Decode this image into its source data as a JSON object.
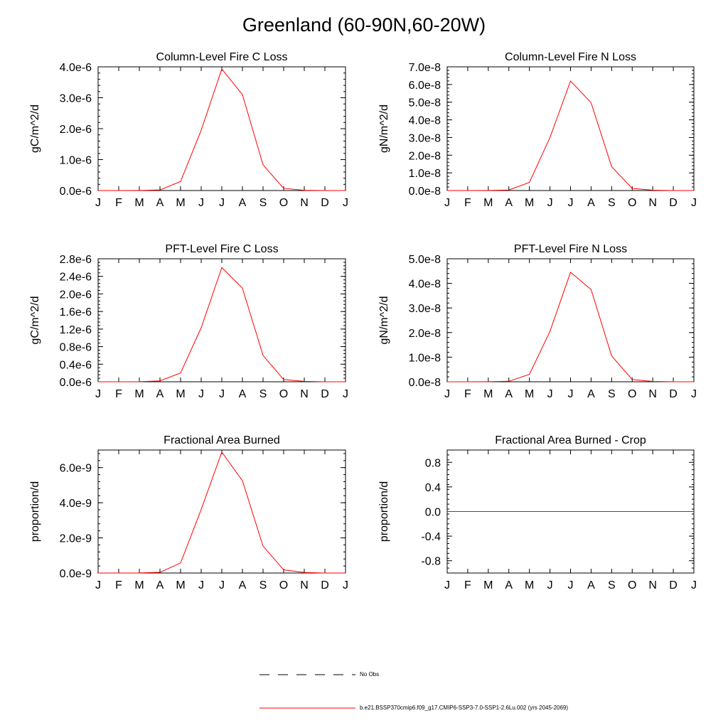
{
  "title": "Greenland (60-90N,60-20W)",
  "month_labels": [
    "J",
    "F",
    "M",
    "A",
    "M",
    "J",
    "J",
    "A",
    "S",
    "O",
    "N",
    "D",
    "J"
  ],
  "chart_data": [
    {
      "type": "line",
      "title": "Column-Level Fire C Loss",
      "ylabel": "gC/m^2/d",
      "ylim": [
        0,
        4e-06
      ],
      "yticks": [
        0,
        1e-06,
        2e-06,
        3e-06,
        4e-06
      ],
      "ytick_labels": [
        "0.0e-6",
        "1.0e-6",
        "2.0e-6",
        "3.0e-6",
        "4.0e-6"
      ],
      "series": [
        {
          "values": [
            0,
            0,
            3e-09,
            2e-08,
            2.9e-07,
            1.95e-06,
            3.93e-06,
            3.1e-06,
            8.3e-07,
            7e-08,
            1e-08,
            0,
            0
          ]
        }
      ]
    },
    {
      "type": "line",
      "title": "Column-Level Fire N Loss",
      "ylabel": "gN/m^2/d",
      "ylim": [
        0,
        7e-08
      ],
      "yticks": [
        0,
        1e-08,
        2e-08,
        3e-08,
        4e-08,
        5e-08,
        6e-08,
        7e-08
      ],
      "ytick_labels": [
        "0.0e-8",
        "1.0e-8",
        "2.0e-8",
        "3.0e-8",
        "4.0e-8",
        "5.0e-8",
        "6.0e-8",
        "7.0e-8"
      ],
      "series": [
        {
          "values": [
            0,
            0,
            5e-11,
            3e-10,
            4.6e-09,
            3e-08,
            6.2e-08,
            4.97e-08,
            1.35e-08,
            1.2e-09,
            2e-10,
            0,
            0
          ]
        }
      ]
    },
    {
      "type": "line",
      "title": "PFT-Level Fire C Loss",
      "ylabel": "gC/m^2/d",
      "ylim": [
        0,
        2.8e-06
      ],
      "yticks": [
        0,
        4e-07,
        8e-07,
        1.2e-06,
        1.6e-06,
        2e-06,
        2.4e-06,
        2.8e-06
      ],
      "ytick_labels": [
        "0.0e-6",
        "0.4e-6",
        "0.8e-6",
        "1.2e-6",
        "1.6e-6",
        "2.0e-6",
        "2.4e-6",
        "2.8e-6"
      ],
      "series": [
        {
          "values": [
            0,
            0,
            3e-09,
            2e-08,
            2e-07,
            1.23e-06,
            2.6e-06,
            2.13e-06,
            6e-07,
            5e-08,
            1e-08,
            0,
            0
          ]
        }
      ]
    },
    {
      "type": "line",
      "title": "PFT-Level Fire N Loss",
      "ylabel": "gN/m^2/d",
      "ylim": [
        0,
        5e-08
      ],
      "yticks": [
        0,
        1e-08,
        2e-08,
        3e-08,
        4e-08,
        5e-08
      ],
      "ytick_labels": [
        "0.0e-8",
        "1.0e-8",
        "2.0e-8",
        "3.0e-8",
        "4.0e-8",
        "5.0e-8"
      ],
      "series": [
        {
          "values": [
            0,
            0,
            5e-11,
            2e-10,
            3e-09,
            2.05e-08,
            4.45e-08,
            3.75e-08,
            1.05e-08,
            9e-10,
            1.5e-10,
            0,
            0
          ]
        }
      ]
    },
    {
      "type": "line",
      "title": "Fractional Area Burned",
      "ylabel": "proportion/d",
      "ylim": [
        0,
        7e-09
      ],
      "yticks": [
        0,
        2e-09,
        4e-09,
        6e-09
      ],
      "ytick_labels": [
        "0.0e-9",
        "2.0e-9",
        "4.0e-9",
        "6.0e-9"
      ],
      "series": [
        {
          "values": [
            0,
            0,
            5e-12,
            4e-11,
            5.7e-10,
            3.62e-09,
            6.88e-09,
            5.25e-09,
            1.53e-09,
            1.8e-10,
            3e-11,
            0,
            0
          ]
        }
      ]
    },
    {
      "type": "line",
      "title": "Fractional Area Burned - Crop",
      "ylabel": "proportion/d",
      "ylim": [
        -1.0,
        1.0
      ],
      "yticks": [
        -0.8,
        -0.4,
        0.0,
        0.4,
        0.8
      ],
      "ytick_labels": [
        "-0.8",
        "-0.4",
        "0.0",
        "0.4",
        "0.8"
      ],
      "series": [
        {
          "values": [
            0,
            0,
            0,
            0,
            0,
            0,
            0,
            0,
            0,
            0,
            0,
            0,
            0
          ]
        }
      ]
    }
  ],
  "legend": {
    "obs_label": "No Obs",
    "model_label": "b.e21.BSSP370cmip6.f09_g17.CMIP6-SSP3-7.0-SSP1-2.6Lu.002 (yrs 2045-2069)",
    "model_color": "#ff0000",
    "obs_color": "#000000"
  }
}
